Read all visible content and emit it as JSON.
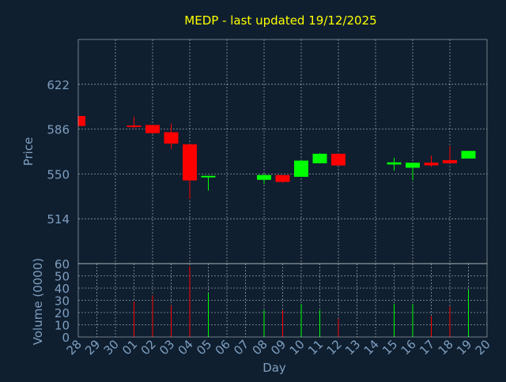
{
  "colors": {
    "background": "#0f1f30",
    "title": "#ffff00",
    "axis_text": "#7f9fbf",
    "grid": "#ffffff",
    "border": "#ffffff",
    "up": "#00ff00",
    "down": "#ff0000"
  },
  "chart_data": [
    {
      "type": "candlestick",
      "title": "MEDP - last updated 19/12/2025",
      "xlabel": "",
      "ylabel": "Price",
      "ylim": [
        478,
        658
      ],
      "yticks": [
        "514",
        "550",
        "586",
        "622"
      ],
      "x_ticks": [
        "28",
        "29",
        "30",
        "01",
        "02",
        "03",
        "04",
        "05",
        "06",
        "07",
        "08",
        "09",
        "10",
        "11",
        "12",
        "13",
        "14",
        "15",
        "16",
        "17",
        "18",
        "19",
        "20"
      ],
      "grid": true,
      "candles": [
        {
          "day": "28",
          "open": 596.5,
          "high": 596.5,
          "low": 588.5,
          "close": 588.5
        },
        {
          "day": "01",
          "open": 588.9,
          "high": 596.0,
          "low": 586.5,
          "close": 587.7
        },
        {
          "day": "02",
          "open": 589.3,
          "high": 589.3,
          "low": 582.2,
          "close": 582.8
        },
        {
          "day": "03",
          "open": 583.5,
          "high": 590.5,
          "low": 570.0,
          "close": 574.4
        },
        {
          "day": "04",
          "open": 573.8,
          "high": 573.8,
          "low": 530.0,
          "close": 544.8
        },
        {
          "day": "05",
          "open": 547.7,
          "high": 548.5,
          "low": 536.6,
          "close": 548.5
        },
        {
          "day": "08",
          "open": 545.3,
          "high": 550.0,
          "low": 542.0,
          "close": 549.1
        },
        {
          "day": "09",
          "open": 549.1,
          "high": 549.1,
          "low": 543.0,
          "close": 543.6
        },
        {
          "day": "10",
          "open": 547.7,
          "high": 560.7,
          "low": 547.7,
          "close": 560.7
        },
        {
          "day": "11",
          "open": 558.6,
          "high": 566.8,
          "low": 558.6,
          "close": 566.2
        },
        {
          "day": "12",
          "open": 566.2,
          "high": 566.2,
          "low": 556.8,
          "close": 556.8
        },
        {
          "day": "15",
          "open": 557.6,
          "high": 563.0,
          "low": 552.6,
          "close": 559.3
        },
        {
          "day": "16",
          "open": 555.0,
          "high": 559.0,
          "low": 545.0,
          "close": 559.0
        },
        {
          "day": "17",
          "open": 559.1,
          "high": 564.8,
          "low": 555.8,
          "close": 556.9
        },
        {
          "day": "18",
          "open": 561.1,
          "high": 572.5,
          "low": 558.6,
          "close": 558.6
        },
        {
          "day": "19",
          "open": 562.4,
          "high": 568.5,
          "low": 562.4,
          "close": 568.5
        }
      ]
    },
    {
      "type": "bar",
      "title": "",
      "xlabel": "Day",
      "ylabel": "Volume (0000)",
      "ylim": [
        0,
        60
      ],
      "yticks": [
        "0",
        "10",
        "20",
        "30",
        "40",
        "50",
        "60"
      ],
      "grid": true,
      "categories": [
        "01",
        "02",
        "03",
        "04",
        "05",
        "08",
        "09",
        "10",
        "11",
        "12",
        "15",
        "16",
        "17",
        "18",
        "19"
      ],
      "values": [
        29,
        34,
        26,
        58,
        36,
        22,
        22,
        27,
        22,
        15,
        27,
        27,
        17,
        25,
        39
      ],
      "direction": [
        "down",
        "down",
        "down",
        "down",
        "up",
        "up",
        "down",
        "up",
        "up",
        "down",
        "up",
        "up",
        "down",
        "down",
        "up"
      ]
    }
  ]
}
